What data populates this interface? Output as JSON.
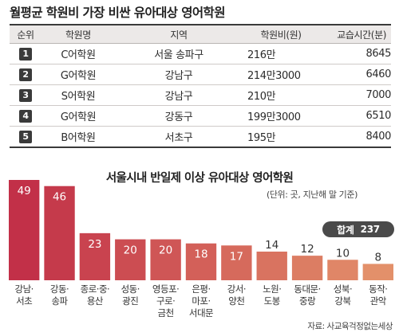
{
  "title": "월평균 학원비 가장 비싼 유아대상 영어학원",
  "table": {
    "headers": [
      "순위",
      "학원명",
      "지역",
      "학원비(원)",
      "교습시간(분)"
    ],
    "rows": [
      {
        "rank": "1",
        "name": "C어학원",
        "region": "서울 송파구",
        "fee": "216만",
        "hours": "8645"
      },
      {
        "rank": "2",
        "name": "G어학원",
        "region": "강남구",
        "fee": "214만3000",
        "hours": "6460"
      },
      {
        "rank": "3",
        "name": "S어학원",
        "region": "강남구",
        "fee": "210만",
        "hours": "7000"
      },
      {
        "rank": "4",
        "name": "G어학원",
        "region": "강동구",
        "fee": "199만3000",
        "hours": "6510"
      },
      {
        "rank": "5",
        "name": "B어학원",
        "region": "서초구",
        "fee": "195만",
        "hours": "8400"
      }
    ]
  },
  "chart_title": "서울시내 반일제 이상 유아대상 영어학원",
  "unit_note": "(단위: 곳, 지난해 말 기준)",
  "total": {
    "label": "합계",
    "value": "237"
  },
  "source": "자료: 사교육걱정없는세상",
  "colors": {
    "bar_dark": "#c23048",
    "bar_light": "#e3906a",
    "header_bg": "#ece9e8"
  },
  "chart_data": {
    "type": "bar",
    "title": "서울시내 반일제 이상 유아대상 영어학원",
    "categories": [
      [
        "강남·",
        "서초"
      ],
      [
        "강동·",
        "송파"
      ],
      [
        "종로·중·",
        "용산"
      ],
      [
        "성동·",
        "광진"
      ],
      [
        "영등포·",
        "구로·",
        "금천"
      ],
      [
        "은평·",
        "마포·",
        "서대문"
      ],
      [
        "강서·",
        "양천"
      ],
      [
        "노원·",
        "도봉"
      ],
      [
        "동대문·",
        "중랑"
      ],
      [
        "성북·",
        "강북"
      ],
      [
        "동작·",
        "관악"
      ]
    ],
    "values": [
      49,
      46,
      23,
      20,
      20,
      18,
      17,
      14,
      12,
      10,
      8
    ],
    "ylim": [
      0,
      49
    ]
  }
}
